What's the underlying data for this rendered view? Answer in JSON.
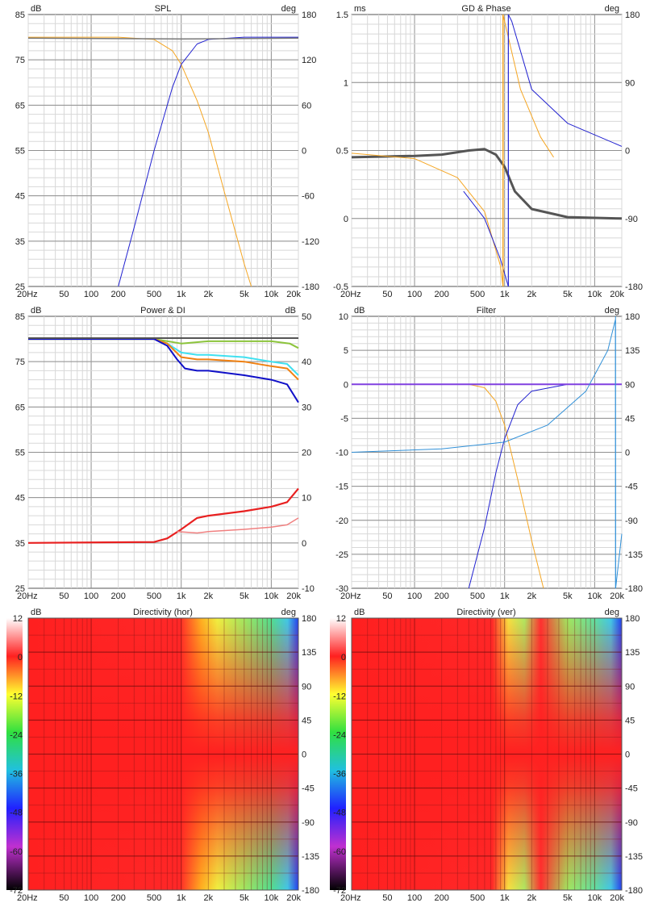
{
  "x_ticks": [
    "20Hz",
    "50",
    "100",
    "200",
    "500",
    "1k",
    "2k",
    "5k",
    "10k",
    "20k"
  ],
  "x_values": [
    20,
    50,
    100,
    200,
    500,
    1000,
    2000,
    5000,
    10000,
    20000
  ],
  "panels": {
    "spl": {
      "title": "SPL",
      "left_unit": "dB",
      "right_unit": "deg",
      "left_ticks": [
        "85",
        "75",
        "65",
        "55",
        "45",
        "35",
        "25"
      ],
      "right_ticks": [
        "180",
        "120",
        "60",
        "0",
        "-60",
        "-120",
        "-180"
      ]
    },
    "gd": {
      "title": "GD & Phase",
      "left_unit": "ms",
      "right_unit": "deg",
      "left_ticks": [
        "1.5",
        "1",
        "0.5",
        "0",
        "-0.5"
      ],
      "right_ticks": [
        "180",
        "90",
        "0",
        "-90",
        "-180"
      ]
    },
    "power": {
      "title": "Power & DI",
      "left_unit": "dB",
      "right_unit": "dB",
      "left_ticks": [
        "85",
        "75",
        "65",
        "55",
        "45",
        "35",
        "25"
      ],
      "right_ticks": [
        "50",
        "40",
        "30",
        "20",
        "10",
        "0",
        "-10"
      ]
    },
    "filter": {
      "title": "Filter",
      "left_unit": "dB",
      "right_unit": "deg",
      "left_ticks": [
        "10",
        "5",
        "0",
        "-5",
        "-10",
        "-15",
        "-20",
        "-25",
        "-30"
      ],
      "right_ticks": [
        "180",
        "135",
        "90",
        "45",
        "0",
        "-45",
        "-90",
        "-135",
        "-180"
      ]
    },
    "dir_hor": {
      "title": "Directivity (hor)",
      "left_unit": "dB",
      "right_unit": "deg",
      "scale_ticks": [
        "12",
        "0",
        "-12",
        "-24",
        "-36",
        "-48",
        "-60",
        "-72"
      ],
      "right_ticks": [
        "180",
        "135",
        "90",
        "45",
        "0",
        "-45",
        "-90",
        "-135",
        "-180"
      ]
    },
    "dir_ver": {
      "title": "Directivity (ver)",
      "left_unit": "dB",
      "right_unit": "deg",
      "scale_ticks": [
        "12",
        "0",
        "-12",
        "-24",
        "-36",
        "-48",
        "-60",
        "-72"
      ],
      "right_ticks": [
        "180",
        "135",
        "90",
        "45",
        "0",
        "-45",
        "-90",
        "-135",
        "-180"
      ]
    }
  },
  "colors": {
    "lowpass": "#f5a623",
    "highpass": "#2020d0",
    "gd": "#555555",
    "sum": "#7a7a7a",
    "green": "#8cc43c",
    "cyan": "#40e0f0",
    "orange": "#f08010",
    "blue": "#1010c8",
    "red": "#e82020",
    "pink": "#f08080",
    "purple": "#8040e0",
    "steel": "#3090d8"
  },
  "chart_data": [
    {
      "type": "line",
      "title": "SPL",
      "xscale": "log",
      "xlim": [
        20,
        20000
      ],
      "ylim": [
        25,
        85
      ],
      "ylabel": "dB",
      "y2lim": [
        -180,
        180
      ],
      "y2label": "deg",
      "series": [
        {
          "x": [
            20,
            200,
            500,
            800,
            1000,
            1500,
            2000,
            3000,
            5000,
            6000
          ],
          "values": [
            80,
            80,
            79.5,
            77,
            74,
            66,
            59,
            46,
            30,
            25
          ]
        },
        {
          "x": [
            200,
            300,
            500,
            800,
            1000,
            1500,
            2000,
            5000,
            20000
          ],
          "values": [
            25,
            38,
            55,
            69,
            74,
            78.5,
            79.5,
            80,
            80
          ]
        },
        {
          "x": [
            20,
            1000,
            20000
          ],
          "values": [
            79.8,
            79.6,
            79.8
          ]
        }
      ]
    },
    {
      "type": "line",
      "title": "GD & Phase",
      "xscale": "log",
      "xlim": [
        20,
        20000
      ],
      "ylim": [
        -0.5,
        1.5
      ],
      "ylabel": "ms",
      "y2lim": [
        -180,
        180
      ],
      "y2label": "deg",
      "series": [
        {
          "x": [
            20,
            100,
            200,
            400,
            600,
            800,
            1000,
            1300,
            2000,
            5000,
            20000
          ],
          "values": [
            0.45,
            0.46,
            0.47,
            0.5,
            0.51,
            0.47,
            0.38,
            0.2,
            0.07,
            0.01,
            0.0
          ]
        },
        {
          "x": [
            20,
            100,
            300,
            600,
            900,
            960
          ],
          "values": [
            0.48,
            0.44,
            0.3,
            0.05,
            -0.35,
            -0.5
          ]
        },
        {
          "x": [
            960,
            1000,
            1500,
            2500,
            3500
          ],
          "values": [
            1.5,
            1.45,
            0.95,
            0.6,
            0.45
          ]
        },
        {
          "x": [
            350,
            600,
            900,
            1100
          ],
          "values": [
            0.2,
            0.0,
            -0.3,
            -0.5
          ]
        },
        {
          "x": [
            1100,
            1200,
            2000,
            5000,
            20000
          ],
          "values": [
            1.5,
            1.45,
            0.95,
            0.7,
            0.53
          ]
        }
      ]
    },
    {
      "type": "line",
      "title": "Power & DI",
      "xscale": "log",
      "xlim": [
        20,
        20000
      ],
      "ylim": [
        25,
        85
      ],
      "ylabel": "dB",
      "y2lim": [
        -10,
        50
      ],
      "y2label": "dB",
      "series": [
        {
          "x": [
            20,
            500,
            1000,
            2000,
            5000,
            10000,
            16000,
            20000
          ],
          "values": [
            80,
            80,
            79,
            79.5,
            79.5,
            79.5,
            79,
            78
          ]
        },
        {
          "x": [
            20,
            500,
            700,
            1000,
            1500,
            2000,
            5000,
            10000,
            15000,
            20000
          ],
          "values": [
            80,
            80,
            79,
            77,
            76.5,
            76.5,
            76,
            75,
            74.5,
            72
          ]
        },
        {
          "x": [
            20,
            500,
            700,
            1000,
            1500,
            2000,
            5000,
            10000,
            15000,
            20000
          ],
          "values": [
            80,
            80,
            79,
            76,
            75.5,
            75.5,
            75,
            74,
            73.5,
            71
          ]
        },
        {
          "x": [
            20,
            500,
            700,
            900,
            1100,
            1500,
            2000,
            5000,
            10000,
            15000,
            20000
          ],
          "values": [
            80,
            80,
            78.5,
            75.5,
            73.5,
            73,
            73,
            72,
            71,
            70,
            66
          ]
        },
        {
          "x": [
            20,
            500,
            700,
            1000,
            1500,
            2000,
            5000,
            10000,
            15000,
            20000
          ],
          "values": [
            35,
            35.2,
            36,
            38,
            40.5,
            41,
            42,
            43,
            44,
            47
          ]
        },
        {
          "x": [
            900,
            1500,
            2000,
            5000,
            10000,
            15000,
            20000
          ],
          "values": [
            37.5,
            37.2,
            37.5,
            38,
            38.5,
            39,
            40.5
          ]
        },
        {
          "x": [
            20,
            20000
          ],
          "values": [
            80.2,
            80.2
          ]
        }
      ]
    },
    {
      "type": "line",
      "title": "Filter",
      "xscale": "log",
      "xlim": [
        20,
        20000
      ],
      "ylim": [
        -30,
        10
      ],
      "ylabel": "dB",
      "y2lim": [
        -180,
        180
      ],
      "y2label": "deg",
      "series": [
        {
          "x": [
            20,
            400,
            600,
            800,
            1000,
            1400,
            2000,
            2700
          ],
          "values": [
            0,
            0,
            -0.5,
            -2.5,
            -6,
            -14,
            -23,
            -30
          ]
        },
        {
          "x": [
            400,
            600,
            800,
            1000,
            1400,
            2000,
            5000,
            20000
          ],
          "values": [
            -30,
            -21,
            -13,
            -8,
            -3,
            -1,
            0,
            0
          ]
        },
        {
          "x": [
            20,
            20000
          ],
          "values": [
            0,
            0
          ]
        },
        {
          "x": [
            20,
            200,
            1000,
            3000,
            8000,
            14000,
            17000,
            17100,
            20000
          ],
          "values": [
            -10,
            -9.5,
            -8.5,
            -6,
            -1,
            5,
            9.5,
            -30,
            -22
          ]
        }
      ]
    },
    {
      "type": "heatmap",
      "title": "Directivity (hor)",
      "xscale": "log",
      "xlim": [
        20,
        20000
      ],
      "ylim": [
        -180,
        180
      ],
      "ylabel": "deg",
      "colorbar": [
        -72,
        12
      ],
      "colorbar_unit": "dB"
    },
    {
      "type": "heatmap",
      "title": "Directivity (ver)",
      "xscale": "log",
      "xlim": [
        20,
        20000
      ],
      "ylim": [
        -180,
        180
      ],
      "ylabel": "deg",
      "colorbar": [
        -72,
        12
      ],
      "colorbar_unit": "dB"
    }
  ]
}
